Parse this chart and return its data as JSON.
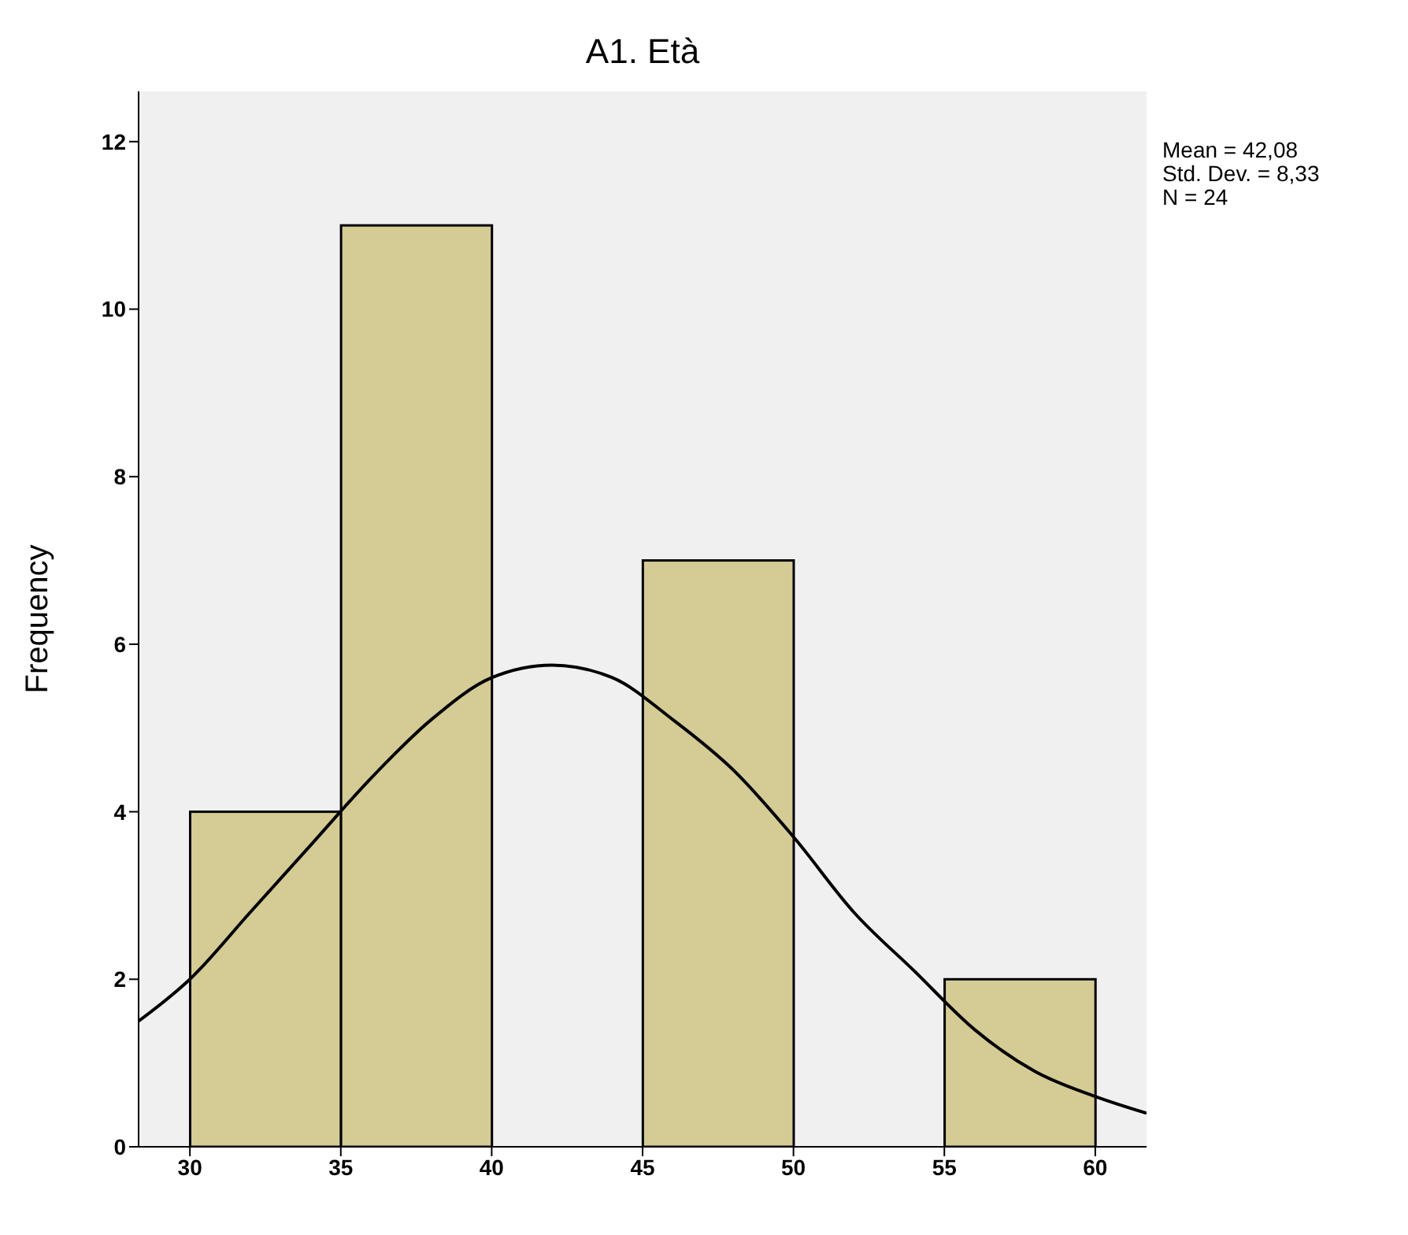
{
  "chart_data": {
    "type": "histogram",
    "title": "A1. Età",
    "ylabel": "Frequency",
    "bins": [
      30,
      35,
      40,
      45,
      50,
      55,
      60
    ],
    "values": [
      4,
      11,
      0,
      7,
      0,
      2
    ],
    "color": "#d4cb95",
    "xlim": [
      28.3,
      61.7
    ],
    "xticks": [
      30,
      35,
      40,
      45,
      50,
      55,
      60
    ],
    "ylim": [
      0,
      12.6
    ],
    "yticks": [
      0,
      2,
      4,
      6,
      8,
      10,
      12
    ],
    "series": [
      {
        "type": "line",
        "color": "#000000",
        "x": [
          28.3,
          30,
          32,
          34,
          36,
          38,
          40,
          42,
          44,
          46,
          48,
          50,
          52,
          54,
          56,
          58,
          60,
          61.7
        ],
        "values": [
          1.5,
          2.0,
          2.8,
          3.6,
          4.4,
          5.1,
          5.6,
          5.75,
          5.6,
          5.1,
          4.5,
          3.7,
          2.8,
          2.1,
          1.4,
          0.9,
          0.6,
          0.4
        ]
      }
    ],
    "annotations": [
      "Mean = 42,08",
      "Std. Dev. = 8,33",
      "N = 24"
    ]
  }
}
